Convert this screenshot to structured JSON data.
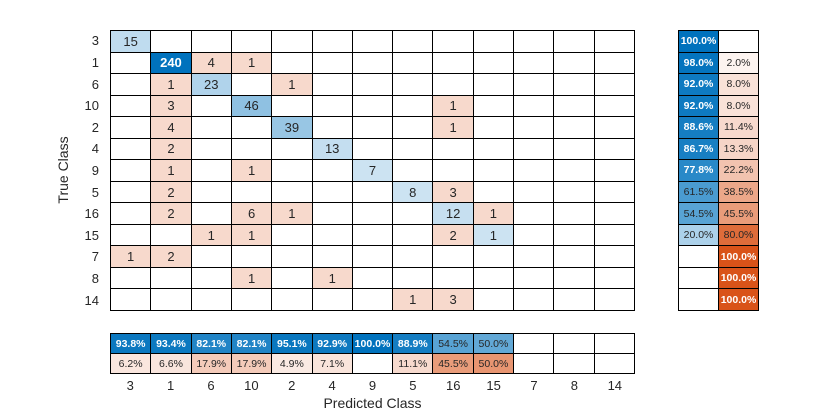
{
  "chart_data": {
    "type": "heatmap",
    "subtype": "confusion-matrix",
    "title": "",
    "xlabel": "Predicted Class",
    "ylabel": "True Class",
    "classes": [
      "3",
      "1",
      "6",
      "10",
      "2",
      "4",
      "9",
      "5",
      "16",
      "15",
      "7",
      "8",
      "14"
    ],
    "matrix": [
      [
        15,
        null,
        null,
        null,
        null,
        null,
        null,
        null,
        null,
        null,
        null,
        null,
        null
      ],
      [
        null,
        240,
        4,
        1,
        null,
        null,
        null,
        null,
        null,
        null,
        null,
        null,
        null
      ],
      [
        null,
        1,
        23,
        null,
        1,
        null,
        null,
        null,
        null,
        null,
        null,
        null,
        null
      ],
      [
        null,
        3,
        null,
        46,
        null,
        null,
        null,
        null,
        1,
        null,
        null,
        null,
        null
      ],
      [
        null,
        4,
        null,
        null,
        39,
        null,
        null,
        null,
        1,
        null,
        null,
        null,
        null
      ],
      [
        null,
        2,
        null,
        null,
        null,
        13,
        null,
        null,
        null,
        null,
        null,
        null,
        null
      ],
      [
        null,
        1,
        null,
        1,
        null,
        null,
        7,
        null,
        null,
        null,
        null,
        null,
        null
      ],
      [
        null,
        2,
        null,
        null,
        null,
        null,
        null,
        8,
        3,
        null,
        null,
        null,
        null
      ],
      [
        null,
        2,
        null,
        6,
        1,
        null,
        null,
        null,
        12,
        1,
        null,
        null,
        null
      ],
      [
        null,
        null,
        1,
        1,
        null,
        null,
        null,
        null,
        2,
        1,
        null,
        null,
        null
      ],
      [
        1,
        2,
        null,
        null,
        null,
        null,
        null,
        null,
        null,
        null,
        null,
        null,
        null
      ],
      [
        null,
        null,
        null,
        1,
        null,
        1,
        null,
        null,
        null,
        null,
        null,
        null,
        null
      ],
      [
        null,
        null,
        null,
        null,
        null,
        null,
        null,
        1,
        3,
        null,
        null,
        null,
        null
      ]
    ],
    "row_summary": {
      "correct_pct": [
        "100.0%",
        "98.0%",
        "92.0%",
        "92.0%",
        "88.6%",
        "86.7%",
        "77.8%",
        "61.5%",
        "54.5%",
        "20.0%",
        "",
        "",
        ""
      ],
      "incorrect_pct": [
        "",
        "2.0%",
        "8.0%",
        "8.0%",
        "11.4%",
        "13.3%",
        "22.2%",
        "38.5%",
        "45.5%",
        "80.0%",
        "100.0%",
        "100.0%",
        "100.0%"
      ]
    },
    "col_summary": {
      "correct_pct": [
        "93.8%",
        "93.4%",
        "82.1%",
        "82.1%",
        "95.1%",
        "92.9%",
        "100.0%",
        "88.9%",
        "54.5%",
        "50.0%",
        "",
        "",
        ""
      ],
      "incorrect_pct": [
        "6.2%",
        "6.6%",
        "17.9%",
        "17.9%",
        "4.9%",
        "7.1%",
        "",
        "11.1%",
        "45.5%",
        "50.0%",
        "",
        "",
        ""
      ]
    },
    "colors": {
      "diagonal_blue": "#0072BD",
      "off_diagonal_orange": "#D95319",
      "text_dark": "#262626",
      "text_light": "#FFFFFF",
      "grid_line": "#000000",
      "background": "#FFFFFF"
    },
    "layout": {
      "grid_on": true,
      "legend": "none",
      "row_summary_position": "right",
      "col_summary_position": "bottom"
    }
  }
}
